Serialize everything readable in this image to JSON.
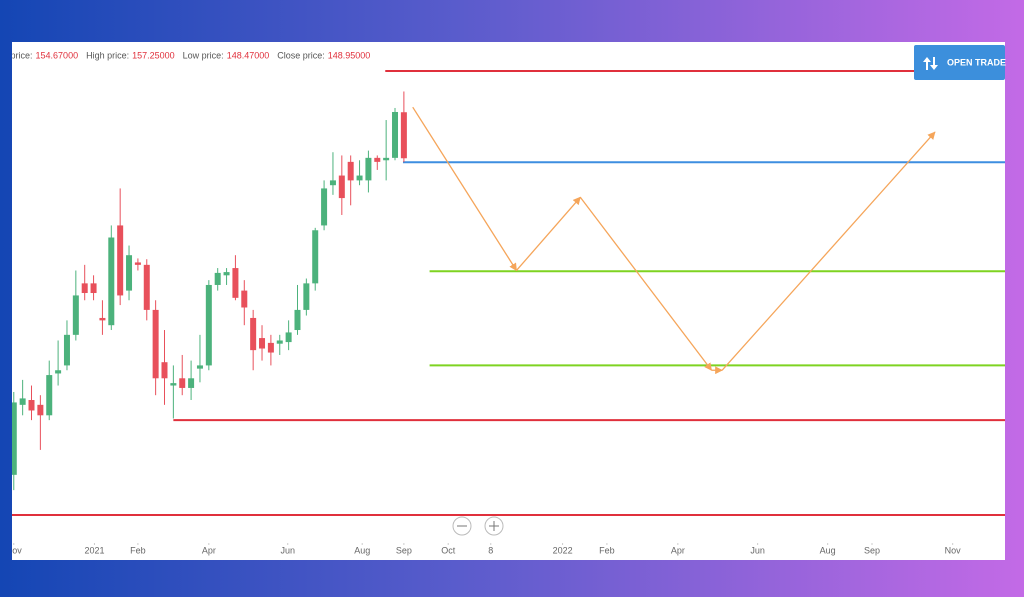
{
  "header": {
    "prices": [
      {
        "label": "Open price:",
        "value": "154.67000"
      },
      {
        "label": "High price:",
        "value": "157.25000"
      },
      {
        "label": "Low price:",
        "value": "148.47000"
      },
      {
        "label": "Close price:",
        "value": "148.95000"
      }
    ]
  },
  "button": {
    "label": "OPEN TRADE"
  },
  "chart_data": {
    "type": "candlestick",
    "x": [
      0,
      1,
      2,
      3,
      4,
      5,
      6,
      7,
      8,
      9,
      10,
      11,
      12,
      13,
      14,
      15,
      16,
      17,
      18,
      19,
      20,
      21,
      22,
      23,
      24,
      25,
      26,
      27,
      28,
      29,
      30,
      31,
      32,
      33,
      34,
      35,
      36,
      37,
      38,
      39,
      40,
      41,
      42,
      43,
      44
    ],
    "open": [
      109.6,
      118.3,
      118.9,
      118.3,
      117.0,
      122.2,
      123.2,
      127.0,
      133.4,
      133.4,
      129.1,
      128.2,
      140.6,
      132.5,
      136.0,
      135.7,
      130.1,
      123.6,
      120.7,
      121.6,
      120.4,
      122.8,
      123.2,
      133.2,
      134.4,
      135.3,
      132.5,
      129.1,
      126.6,
      126.0,
      125.9,
      126.1,
      127.6,
      130.1,
      133.4,
      140.6,
      145.6,
      146.8,
      148.5,
      146.2,
      146.2,
      149.0,
      148.7,
      149.0,
      154.67
    ],
    "high": [
      119.9,
      121.4,
      120.7,
      119.5,
      123.8,
      126.3,
      128.8,
      135.0,
      135.7,
      134.4,
      131.3,
      140.6,
      145.2,
      138.1,
      136.5,
      136.4,
      131.3,
      127.6,
      123.2,
      124.5,
      123.8,
      127.0,
      133.8,
      135.3,
      135.3,
      136.9,
      133.8,
      130.1,
      128.2,
      127.0,
      127.0,
      128.8,
      133.2,
      134.0,
      140.3,
      146.2,
      149.7,
      149.3,
      149.3,
      148.7,
      149.9,
      149.3,
      153.7,
      155.2,
      157.25
    ],
    "low": [
      107.7,
      117.0,
      116.4,
      112.7,
      116.4,
      120.7,
      122.6,
      126.3,
      131.3,
      131.3,
      127.0,
      127.6,
      130.7,
      131.3,
      135.0,
      128.8,
      119.5,
      118.3,
      116.6,
      119.5,
      118.9,
      121.1,
      122.6,
      132.5,
      133.2,
      131.3,
      128.2,
      122.6,
      123.8,
      123.2,
      124.5,
      125.1,
      127.0,
      129.4,
      132.5,
      140.0,
      144.4,
      141.9,
      143.1,
      145.6,
      144.7,
      147.5,
      146.2,
      148.7,
      148.47
    ],
    "close": [
      118.6,
      119.1,
      117.6,
      117.0,
      122.0,
      122.6,
      127.0,
      131.9,
      132.2,
      132.2,
      128.8,
      139.1,
      131.9,
      136.9,
      135.7,
      130.1,
      121.6,
      121.6,
      121.0,
      120.4,
      121.6,
      123.2,
      133.2,
      134.7,
      134.8,
      131.6,
      130.4,
      125.1,
      125.3,
      124.8,
      126.3,
      127.3,
      130.1,
      133.4,
      140.0,
      145.2,
      146.2,
      144.0,
      146.2,
      146.8,
      149.0,
      148.5,
      149.0,
      154.7,
      148.95
    ],
    "up_color": "#4cb27c",
    "down_color": "#e8505b",
    "levels": [
      {
        "value": 159.8,
        "from": 41.9,
        "color": "#e0303c"
      },
      {
        "value": 148.45,
        "from": 43.9,
        "color": "#3d8ee0"
      },
      {
        "value": 134.9,
        "from": 46.9,
        "color": "#7ed321"
      },
      {
        "value": 123.2,
        "from": 46.9,
        "color": "#7ed321"
      },
      {
        "value": 116.4,
        "from": 18.0,
        "color": "#e0303c"
      },
      {
        "value": 104.6,
        "from": -0.2,
        "color": "#e0303c"
      }
    ],
    "projection": {
      "color": "#f5a55a",
      "x": [
        45.0,
        56.7,
        63.9,
        78.7,
        79.9,
        103.9
      ],
      "values": [
        155.3,
        135.0,
        144.1,
        122.6,
        122.6,
        152.2
      ]
    },
    "xlim": [
      -0.2,
      111.8
    ],
    "ylim": [
      101.5,
      163.4
    ],
    "xticks": [
      {
        "value": 0,
        "label": "Nov"
      },
      {
        "value": 9.1,
        "label": "2021"
      },
      {
        "value": 14.0,
        "label": "Feb"
      },
      {
        "value": 22.0,
        "label": "Apr"
      },
      {
        "value": 30.9,
        "label": "Jun"
      },
      {
        "value": 39.3,
        "label": "Aug"
      },
      {
        "value": 44.0,
        "label": "Sep"
      },
      {
        "value": 49.0,
        "label": "Oct"
      },
      {
        "value": 53.8,
        "label": "8"
      },
      {
        "value": 61.9,
        "label": "2022"
      },
      {
        "value": 66.9,
        "label": "Feb"
      },
      {
        "value": 74.9,
        "label": "Apr"
      },
      {
        "value": 83.9,
        "label": "Jun"
      },
      {
        "value": 91.8,
        "label": "Aug"
      },
      {
        "value": 96.8,
        "label": "Sep"
      },
      {
        "value": 105.9,
        "label": "Nov"
      }
    ]
  }
}
